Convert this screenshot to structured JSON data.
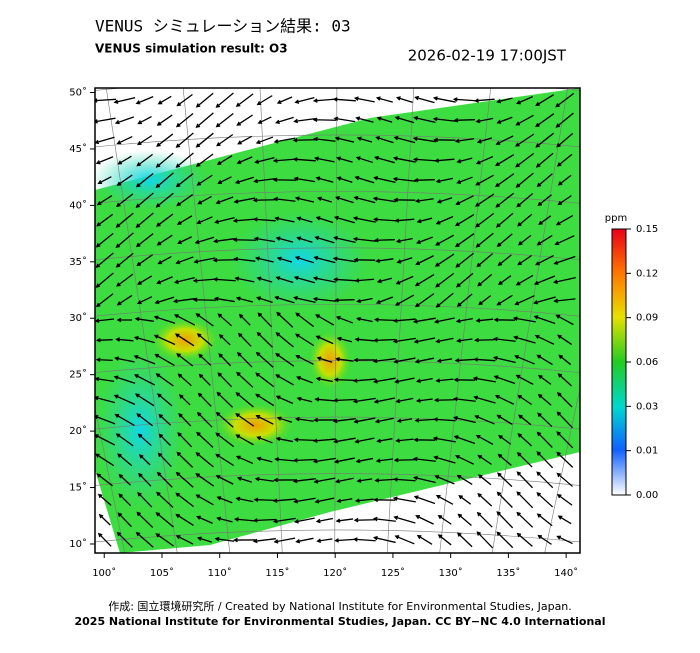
{
  "map": {
    "title": "VENUS シミュレーション結果: 03",
    "subtitle": "VENUS simulation result: O3",
    "timestamp": "2026-02-19 17:00JST",
    "xlim": [
      99.2,
      141.2
    ],
    "ylim": [
      9.2,
      50.4
    ],
    "lon_ticks": [
      {
        "value": 100,
        "label": "100˚"
      },
      {
        "value": 105,
        "label": "105˚"
      },
      {
        "value": 110,
        "label": "110˚"
      },
      {
        "value": 115,
        "label": "115˚"
      },
      {
        "value": 120,
        "label": "120˚"
      },
      {
        "value": 125,
        "label": "125˚"
      },
      {
        "value": 130,
        "label": "130˚"
      },
      {
        "value": 135,
        "label": "135˚"
      },
      {
        "value": 140,
        "label": "140˚"
      }
    ],
    "lat_ticks": [
      {
        "value": 50,
        "label": "50˚"
      },
      {
        "value": 45,
        "label": "45˚"
      },
      {
        "value": 40,
        "label": "40˚"
      },
      {
        "value": 35,
        "label": "35˚"
      },
      {
        "value": 30,
        "label": "30˚"
      },
      {
        "value": 25,
        "label": "25˚"
      },
      {
        "value": 20,
        "label": "20˚"
      },
      {
        "value": 15,
        "label": "15˚"
      },
      {
        "value": 10,
        "label": "10˚"
      }
    ],
    "colorbar": {
      "unit": "ppm",
      "levels": [
        {
          "value": 0.15,
          "label": "0.15"
        },
        {
          "value": 0.12,
          "label": "0.12"
        },
        {
          "value": 0.09,
          "label": "0.09"
        },
        {
          "value": 0.06,
          "label": "0.06"
        },
        {
          "value": 0.03,
          "label": "0.03"
        },
        {
          "value": 0.01,
          "label": "0.01"
        },
        {
          "value": 0,
          "label": "0.00"
        }
      ]
    },
    "credit": [
      "作成: 国立環境研究所 / Created by National Institute for Environmental Studies, Japan.",
      "2025 National Institute for Environmental Studies, Japan. CC BY−NC 4.0 International"
    ]
  }
}
